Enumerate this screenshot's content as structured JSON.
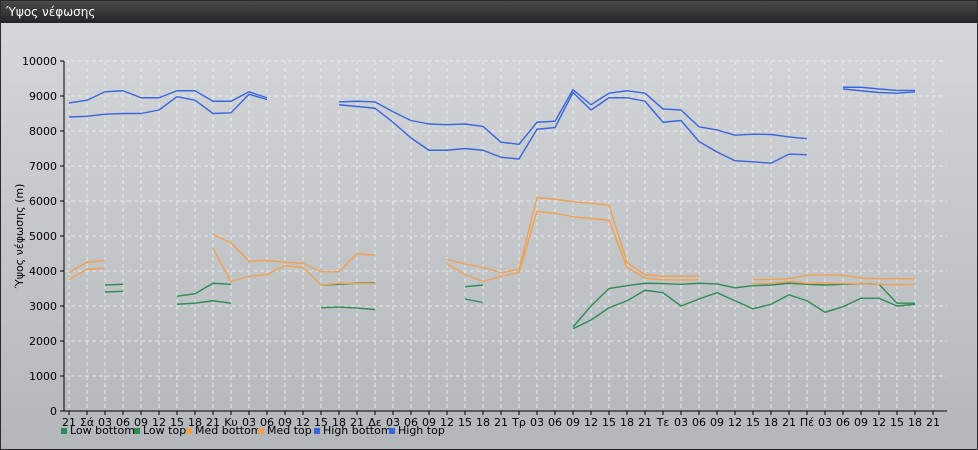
{
  "window": {
    "title": "Ύψος νέφωσης"
  },
  "colors": {
    "low_bottom": "#2e8b57",
    "low_top": "#2e8b57",
    "med_bottom": "#f0a050",
    "med_top": "#f0a050",
    "high_bottom": "#3a64e0",
    "high_top": "#3a64e0"
  },
  "chart_data": {
    "type": "line",
    "title": "",
    "ylabel": "Ύψος νέφωσης (m)",
    "ylim": [
      0,
      10000
    ],
    "yticks": [
      0,
      1000,
      2000,
      3000,
      4000,
      5000,
      6000,
      7000,
      8000,
      9000,
      10000
    ],
    "grid": true,
    "legend_position": "bottom-left",
    "x_tick_labels": [
      "21",
      "Σά",
      "03",
      "06",
      "09",
      "12",
      "15",
      "18",
      "21",
      "Κυ",
      "03",
      "06",
      "09",
      "12",
      "15",
      "18",
      "21",
      "Δε",
      "03",
      "06",
      "09",
      "12",
      "15",
      "18",
      "21",
      "Τρ",
      "03",
      "06",
      "09",
      "12",
      "15",
      "18",
      "21",
      "Τε",
      "03",
      "06",
      "09",
      "12",
      "15",
      "18",
      "21",
      "Πέ",
      "03",
      "06",
      "09",
      "12",
      "15",
      "18",
      "21"
    ],
    "series": [
      {
        "name": "Low bottom",
        "key": "low_bottom",
        "values": [
          null,
          null,
          3400,
          3420,
          null,
          null,
          3050,
          3080,
          3150,
          3080,
          null,
          null,
          null,
          null,
          2950,
          2970,
          2940,
          2900,
          null,
          null,
          null,
          null,
          3200,
          3100,
          null,
          null,
          null,
          null,
          2350,
          2600,
          2950,
          3150,
          3450,
          3380,
          3000,
          3200,
          3380,
          3150,
          2920,
          3050,
          3320,
          3150,
          2820,
          2980,
          3220,
          3220,
          3000,
          3050,
          null
        ]
      },
      {
        "name": "Low top",
        "key": "low_top",
        "values": [
          null,
          null,
          3600,
          3620,
          null,
          null,
          3280,
          3350,
          3650,
          3620,
          null,
          null,
          null,
          null,
          3600,
          3620,
          3650,
          3660,
          null,
          null,
          null,
          null,
          3550,
          3600,
          null,
          null,
          null,
          null,
          2400,
          3000,
          3500,
          3580,
          3650,
          3640,
          3620,
          3650,
          3630,
          3520,
          3580,
          3600,
          3650,
          3620,
          3600,
          3620,
          3640,
          3620,
          3080,
          3080,
          null
        ]
      },
      {
        "name": "Med bottom",
        "key": "med_bottom",
        "values": [
          3750,
          4050,
          4080,
          null,
          null,
          null,
          null,
          null,
          4650,
          3700,
          3850,
          3900,
          4150,
          4100,
          3600,
          3650,
          3640,
          3640,
          null,
          null,
          null,
          4200,
          3900,
          3700,
          3850,
          3950,
          5700,
          5650,
          5550,
          5500,
          5450,
          4100,
          3800,
          3750,
          3740,
          3750,
          null,
          null,
          3640,
          3640,
          3700,
          3650,
          3650,
          3640,
          3640,
          3620,
          3600,
          3620,
          null
        ]
      },
      {
        "name": "Med top",
        "key": "med_top",
        "values": [
          3950,
          4250,
          4300,
          null,
          null,
          null,
          null,
          null,
          5050,
          4800,
          4280,
          4300,
          4250,
          4220,
          3980,
          3980,
          4500,
          4450,
          null,
          null,
          null,
          4330,
          4200,
          4100,
          3950,
          4050,
          6100,
          6050,
          5980,
          5930,
          5880,
          4250,
          3900,
          3850,
          3850,
          3860,
          null,
          null,
          3760,
          3760,
          3780,
          3880,
          3890,
          3880,
          3800,
          3780,
          3780,
          3780,
          null
        ]
      },
      {
        "name": "High bottom",
        "key": "high_bottom",
        "values": [
          8400,
          8420,
          8480,
          8500,
          8500,
          8600,
          8980,
          8880,
          8500,
          8520,
          9050,
          8900,
          null,
          null,
          null,
          8750,
          8700,
          8650,
          8250,
          7800,
          7450,
          7450,
          7500,
          7450,
          7250,
          7200,
          8050,
          8100,
          9100,
          8600,
          8950,
          8950,
          8850,
          8250,
          8300,
          7700,
          7400,
          7150,
          7120,
          7080,
          7340,
          7320,
          null,
          9200,
          9150,
          9100,
          9080,
          9120,
          null
        ]
      },
      {
        "name": "High top",
        "key": "high_top",
        "values": [
          8800,
          8880,
          9120,
          9150,
          8950,
          8950,
          9150,
          9150,
          8850,
          8850,
          9120,
          8950,
          null,
          null,
          null,
          8830,
          8850,
          8830,
          8550,
          8300,
          8200,
          8180,
          8200,
          8130,
          7680,
          7620,
          8250,
          8280,
          9180,
          8750,
          9080,
          9150,
          9080,
          8630,
          8600,
          8120,
          8030,
          7880,
          7910,
          7900,
          7830,
          7780,
          null,
          9250,
          9250,
          9200,
          9160,
          9160,
          null
        ]
      }
    ]
  }
}
